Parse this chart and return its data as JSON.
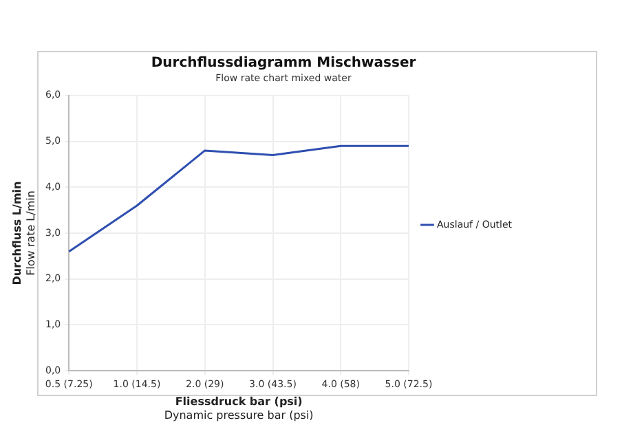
{
  "chart_data": {
    "type": "line",
    "title": "Durchflussdiagramm Mischwasser",
    "subtitle": "Flow rate chart mixed water",
    "xlabel": "Fliessdruck bar (psi)\nDynamic pressure bar (psi)",
    "ylabel": "Durchfluss L/min\nFlow rate L/min",
    "categories": [
      "0.5 (7.25)",
      "1.0 (14.5)",
      "2.0 (29)",
      "3.0 (43.5)",
      "4.0 (58)",
      "5.0 (72.5)"
    ],
    "series": [
      {
        "name": "Auslauf / Outlet",
        "color": "#2f4fb0",
        "values": [
          2.6,
          3.6,
          4.8,
          4.7,
          4.9,
          4.9
        ]
      }
    ],
    "ylim": [
      0,
      6
    ],
    "yticks": [
      {
        "value": 0,
        "label": "0,0"
      },
      {
        "value": 1,
        "label": "1,0"
      },
      {
        "value": 2,
        "label": "2,0"
      },
      {
        "value": 3,
        "label": "3,0"
      },
      {
        "value": 4,
        "label": "4,0"
      },
      {
        "value": 5,
        "label": "5,0"
      },
      {
        "value": 6,
        "label": "6,0"
      }
    ],
    "grid": true,
    "legend": "right",
    "marker": "none",
    "line_style": "solid"
  }
}
